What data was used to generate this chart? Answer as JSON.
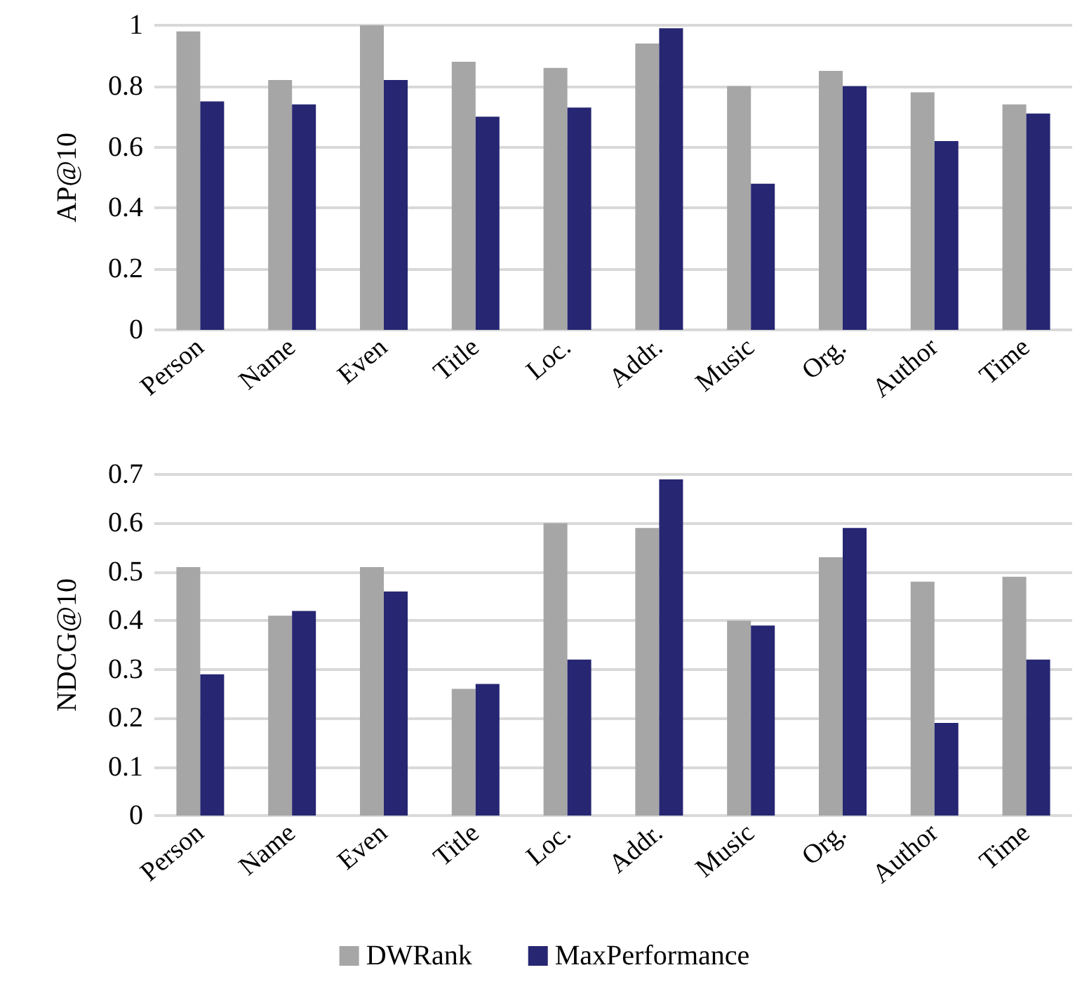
{
  "chart_data": [
    {
      "type": "bar",
      "ylabel": "AP@10",
      "categories": [
        "Person",
        "Name",
        "Even",
        "Title",
        "Loc.",
        "Addr.",
        "Music",
        "Org.",
        "Author",
        "Time"
      ],
      "series": [
        {
          "color": "#a6a6a6",
          "values": [
            0.98,
            0.82,
            1.0,
            0.88,
            0.86,
            0.94,
            0.8,
            0.85,
            0.78,
            0.74
          ]
        },
        {
          "color": "#262673",
          "values": [
            0.75,
            0.74,
            0.82,
            0.7,
            0.73,
            0.99,
            0.48,
            0.8,
            0.62,
            0.71
          ]
        }
      ],
      "ylim": [
        0,
        1
      ],
      "yticks": [
        0,
        0.2,
        0.4,
        0.6,
        0.8,
        1
      ],
      "grid": "y",
      "legend": false
    },
    {
      "type": "bar",
      "ylabel": "NDCG@10",
      "categories": [
        "Person",
        "Name",
        "Even",
        "Title",
        "Loc.",
        "Addr.",
        "Music",
        "Org.",
        "Author",
        "Time"
      ],
      "series": [
        {
          "name": "DWRank",
          "color": "#a6a6a6",
          "values": [
            0.51,
            0.41,
            0.51,
            0.26,
            0.6,
            0.59,
            0.4,
            0.53,
            0.48,
            0.49
          ]
        },
        {
          "name": "MaxPerformance",
          "color": "#262673",
          "values": [
            0.29,
            0.42,
            0.46,
            0.27,
            0.32,
            0.69,
            0.39,
            0.59,
            0.19,
            0.32
          ]
        }
      ],
      "ylim": [
        0,
        0.7
      ],
      "yticks": [
        0,
        0.1,
        0.2,
        0.3,
        0.4,
        0.5,
        0.6,
        0.7
      ],
      "grid": "y",
      "legend": "bottom"
    }
  ]
}
